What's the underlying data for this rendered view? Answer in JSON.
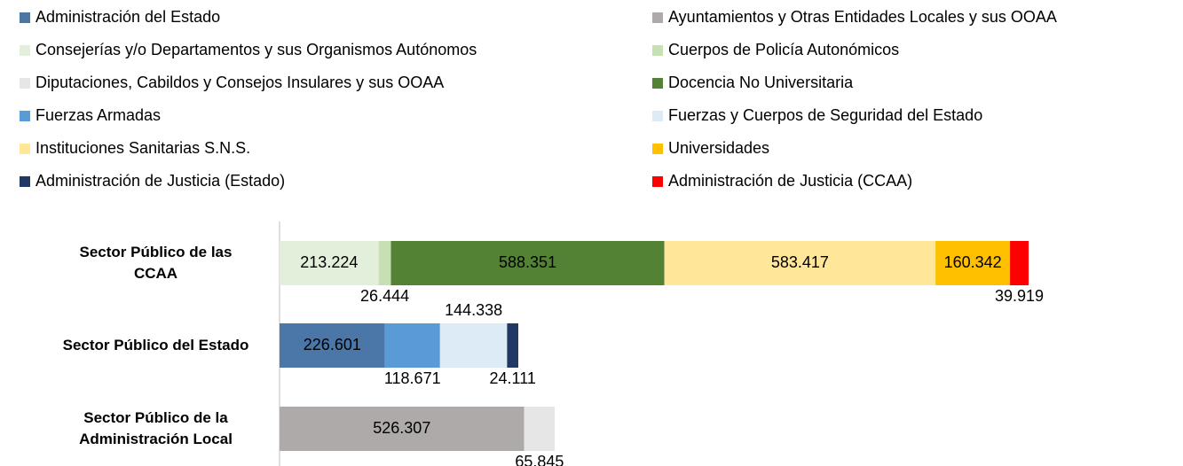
{
  "chart_data": {
    "type": "stacked-bar-horizontal",
    "categories": [
      "Sector Público de las CCAA",
      "Sector Público del Estado",
      "Sector Público de la Administración Local"
    ],
    "series": [
      {
        "name": "Administración del Estado",
        "color": "#4a76a8",
        "values": [
          null,
          226601,
          null
        ],
        "value_labels": [
          null,
          "226.601",
          null
        ]
      },
      {
        "name": "Ayuntamientos y Otras Entidades Locales y sus OOAA",
        "color": "#aeaaaa",
        "values": [
          null,
          null,
          526307
        ],
        "value_labels": [
          null,
          null,
          "526.307"
        ]
      },
      {
        "name": "Consejerías y/o Departamentos y sus Organismos Autónomos",
        "color": "#e2efda",
        "values": [
          213224,
          null,
          null
        ],
        "value_labels": [
          "213.224",
          null,
          null
        ]
      },
      {
        "name": "Cuerpos de Policía Autonómicos",
        "color": "#c6e0b4",
        "values": [
          26444,
          null,
          null
        ],
        "value_labels": [
          "26.444",
          null,
          null
        ]
      },
      {
        "name": "Diputaciones, Cabildos y Consejos Insulares y sus OOAA",
        "color": "#e7e6e6",
        "values": [
          null,
          null,
          65845
        ],
        "value_labels": [
          null,
          null,
          "65.845"
        ]
      },
      {
        "name": "Docencia No Universitaria",
        "color": "#548235",
        "values": [
          588351,
          null,
          null
        ],
        "value_labels": [
          "588.351",
          null,
          null
        ]
      },
      {
        "name": "Fuerzas Armadas",
        "color": "#5b9bd5",
        "values": [
          null,
          118671,
          null
        ],
        "value_labels": [
          null,
          "118.671",
          null
        ]
      },
      {
        "name": "Fuerzas y Cuerpos de Seguridad del Estado",
        "color": "#ddebf7",
        "values": [
          null,
          144338,
          null
        ],
        "value_labels": [
          null,
          "144.338",
          null
        ]
      },
      {
        "name": "Instituciones Sanitarias S.N.S.",
        "color": "#ffe699",
        "values": [
          583417,
          null,
          null
        ],
        "value_labels": [
          "583.417",
          null,
          null
        ]
      },
      {
        "name": "Universidades",
        "color": "#ffc000",
        "values": [
          160342,
          null,
          null
        ],
        "value_labels": [
          "160.342",
          null,
          null
        ]
      },
      {
        "name": "Administración de Justicia (Estado)",
        "color": "#203864",
        "values": [
          null,
          24111,
          null
        ],
        "value_labels": [
          null,
          "24.111",
          null
        ]
      },
      {
        "name": "Administración de Justicia (CCAA)",
        "color": "#ff0000",
        "values": [
          39919,
          null,
          null
        ],
        "value_labels": [
          "39.919",
          null,
          null
        ]
      }
    ],
    "legend": "top"
  }
}
